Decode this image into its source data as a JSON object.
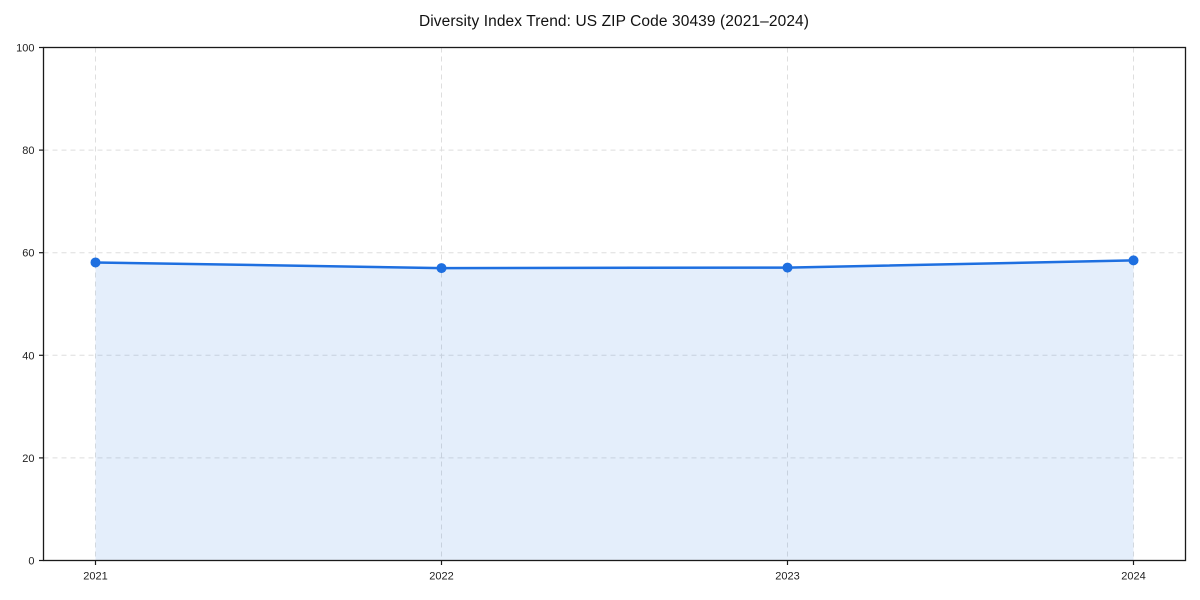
{
  "chart_data": {
    "type": "area",
    "title": "Diversity Index Trend: US ZIP Code 30439 (2021–2024)",
    "x": [
      2021,
      2022,
      2023,
      2024
    ],
    "series": [
      {
        "name": "Diversity Index",
        "values": [
          58.1,
          57.0,
          57.1,
          58.5
        ]
      }
    ],
    "xlabel": "",
    "ylabel": "",
    "xtick_labels": [
      "2021",
      "2022",
      "2023",
      "2024"
    ],
    "ylim": [
      0,
      100
    ],
    "yticks": [
      0,
      20,
      40,
      60,
      80,
      100
    ],
    "grid": "dashed",
    "legend_position": "none",
    "colors": {
      "line": "#1e6fe0",
      "marker": "#1e6fe0",
      "fill": "rgba(32,114,226,0.12)",
      "axis": "#1a1a1a",
      "grid": "#dedede",
      "tick_label": "#222222",
      "background": "#ffffff"
    }
  }
}
